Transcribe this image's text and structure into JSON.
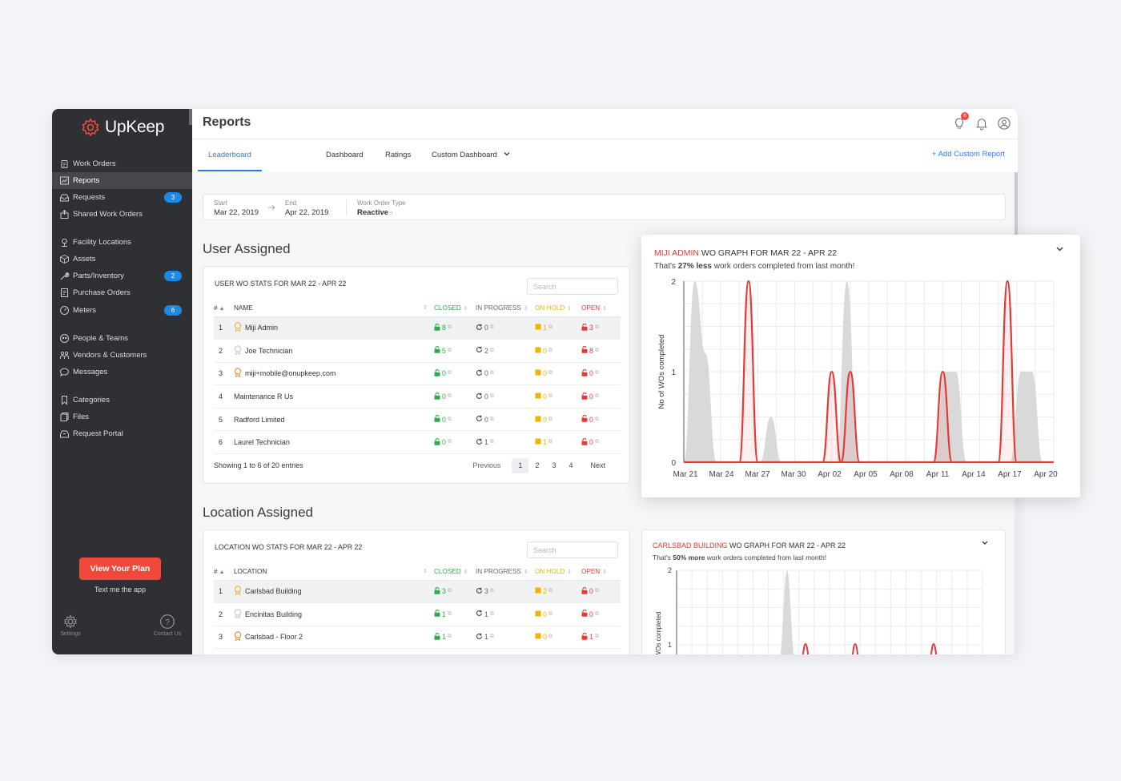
{
  "brand": {
    "name": "UpKeep",
    "accent": "#f2483b"
  },
  "sidebar": {
    "items": [
      {
        "label": "Work Orders",
        "icon": "clipboard-icon"
      },
      {
        "label": "Reports",
        "icon": "chart-icon",
        "active": true
      },
      {
        "label": "Requests",
        "icon": "inbox-icon",
        "badge": "3"
      },
      {
        "label": "Shared Work Orders",
        "icon": "share-icon"
      },
      {
        "label": "Facility Locations",
        "icon": "location-icon"
      },
      {
        "label": "Assets",
        "icon": "cube-icon"
      },
      {
        "label": "Parts/Inventory",
        "icon": "wrench-icon",
        "badge": "2"
      },
      {
        "label": "Purchase Orders",
        "icon": "document-icon"
      },
      {
        "label": "Meters",
        "icon": "gauge-icon",
        "badge": "6"
      },
      {
        "label": "People & Teams",
        "icon": "people-icon"
      },
      {
        "label": "Vendors & Customers",
        "icon": "vendors-icon"
      },
      {
        "label": "Messages",
        "icon": "chat-icon"
      },
      {
        "label": "Categories",
        "icon": "bookmark-icon"
      },
      {
        "label": "Files",
        "icon": "files-icon"
      },
      {
        "label": "Request Portal",
        "icon": "portal-icon"
      }
    ],
    "plan_button": "View Your Plan",
    "text_app": "Text me the app",
    "settings": "Settings",
    "contact": "Contact Us"
  },
  "header": {
    "title": "Reports",
    "notification_count": "6"
  },
  "tabs": [
    {
      "label": "Leaderboard",
      "active": true
    },
    {
      "label": "Dashboard"
    },
    {
      "label": "Ratings"
    },
    {
      "label": "Custom Dashboard"
    }
  ],
  "add_report": "+ Add Custom Report",
  "filters": {
    "start_label": "Start",
    "start_value": "Mar 22, 2019",
    "end_label": "End",
    "end_value": "Apr 22, 2019",
    "type_label": "Work Order Type",
    "type_value": "Reactive"
  },
  "user_section": {
    "title": "User Assigned",
    "card_title": "USER WO STATS FOR MAR 22 - APR 22",
    "search_placeholder": "Search",
    "columns": {
      "num": "#",
      "name": "NAME",
      "closed": "CLOSED",
      "in_progress": "IN PROGRESS",
      "on_hold": "ON HOLD",
      "open": "OPEN"
    },
    "rows": [
      {
        "num": "1",
        "name": "Miji Admin",
        "medal": "gold",
        "closed": "8",
        "in_progress": "0",
        "on_hold": "1",
        "open": "3"
      },
      {
        "num": "2",
        "name": "Joe Technician",
        "medal": "silver",
        "closed": "5",
        "in_progress": "2",
        "on_hold": "0",
        "open": "8"
      },
      {
        "num": "3",
        "name": "miji+mobile@onupkeep.com",
        "medal": "bronze",
        "closed": "0",
        "in_progress": "0",
        "on_hold": "0",
        "open": "0"
      },
      {
        "num": "4",
        "name": "Maintenance R Us",
        "closed": "0",
        "in_progress": "0",
        "on_hold": "0",
        "open": "0"
      },
      {
        "num": "5",
        "name": "Radford Limited",
        "closed": "0",
        "in_progress": "0",
        "on_hold": "0",
        "open": "0"
      },
      {
        "num": "6",
        "name": "Laurel Technician",
        "closed": "0",
        "in_progress": "1",
        "on_hold": "1",
        "open": "0"
      }
    ],
    "showing": "Showing 1 to 6 of 20 entries",
    "pager": {
      "previous": "Previous",
      "pages": [
        "1",
        "2",
        "3",
        "4"
      ],
      "next": "Next"
    }
  },
  "location_section": {
    "title": "Location Assigned",
    "card_title": "LOCATION WO STATS FOR MAR 22 - APR 22",
    "search_placeholder": "Search",
    "columns": {
      "num": "#",
      "name": "LOCATION",
      "closed": "CLOSED",
      "in_progress": "IN PROGRESS",
      "on_hold": "ON HOLD",
      "open": "OPEN"
    },
    "rows": [
      {
        "num": "1",
        "name": "Carlsbad Building",
        "medal": "gold",
        "closed": "3",
        "in_progress": "3",
        "on_hold": "2",
        "open": "0"
      },
      {
        "num": "2",
        "name": "Encinitas Building",
        "medal": "silver",
        "closed": "1",
        "in_progress": "1",
        "on_hold": "0",
        "open": "0"
      },
      {
        "num": "3",
        "name": "Carlsbad - Floor 2",
        "medal": "bronze",
        "closed": "1",
        "in_progress": "1",
        "on_hold": "0",
        "open": "1"
      }
    ]
  },
  "popup": {
    "title_highlight": "MIJI ADMIN",
    "title_rest": " WO GRAPH FOR MAR 22 - APR 22",
    "sub_before": "That's ",
    "sub_highlight": "27% less",
    "sub_after": " work orders completed from last month!"
  },
  "location_graph": {
    "title_highlight": "CARLSBAD BUILDING",
    "title_rest": " WO GRAPH FOR MAR 22 - APR 22",
    "sub_before": "That's ",
    "sub_highlight": "50% more",
    "sub_after": " work orders completed from last month!"
  },
  "chart_data": [
    {
      "type": "area",
      "ylabel": "No of WOs completed",
      "ylim": [
        0,
        2
      ],
      "yticks": [
        "0",
        "1",
        "2"
      ],
      "x_ticks": [
        "Mar 21",
        "Mar 24",
        "Mar 27",
        "Mar 30",
        "Apr 02",
        "Apr 05",
        "Apr 08",
        "Apr 11",
        "Apr 14",
        "Apr 17",
        "Apr 20"
      ],
      "grid": true,
      "series": [
        {
          "color": "#d9d9d9",
          "values": [
            0,
            2,
            1.2,
            0,
            0,
            0,
            0,
            0,
            0.5,
            0,
            0,
            0,
            0,
            0,
            0,
            2,
            0,
            0,
            0,
            0,
            0,
            0,
            0,
            0,
            1,
            1,
            0,
            0,
            0,
            0,
            0,
            1,
            1,
            0,
            0
          ]
        },
        {
          "color": "#e53935",
          "values": [
            0,
            0,
            0,
            0,
            0,
            0,
            0,
            2,
            0,
            0,
            0,
            0,
            0,
            0,
            0,
            0,
            1,
            0,
            1,
            0,
            0,
            0,
            0,
            0,
            0,
            0,
            0,
            0,
            1,
            0,
            0,
            0,
            0,
            0,
            0,
            2,
            0,
            0,
            0,
            0,
            0
          ]
        }
      ]
    },
    {
      "type": "area",
      "ylabel": "WOs completed",
      "ylim": [
        0,
        2
      ],
      "yticks": [
        "1",
        "2"
      ],
      "grid": true
    }
  ]
}
